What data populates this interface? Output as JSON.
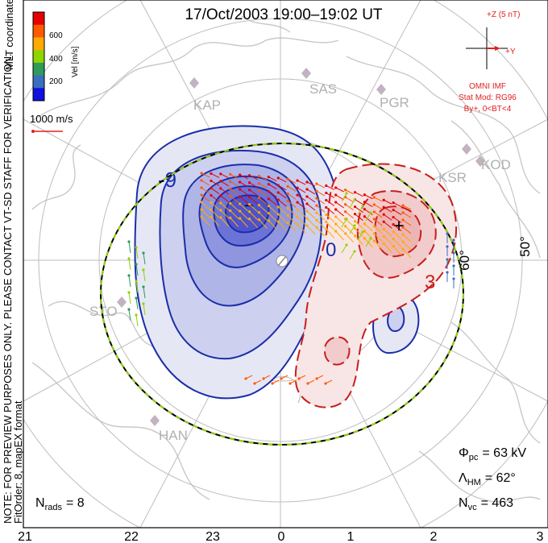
{
  "title": "17/Oct/2003 19:00–19:02 UT",
  "side_notes": {
    "mlt_coords": "MLT coordinates",
    "preview_note": "NOTE: FOR PREVIEW PURPOSES ONLY. PLEASE CONTACT VT-SD STAFF FOR VERIFICATION.",
    "fit_order": "FitOrder: 8, mapEX format"
  },
  "colorbar": {
    "label": "Vel [m/s]",
    "ticks": [
      "600",
      "400",
      "200"
    ],
    "colors": [
      "#e60000",
      "#ff5a00",
      "#ffaa00",
      "#8fd400",
      "#2f9a5a",
      "#3a6ec0",
      "#1010e0"
    ]
  },
  "scale_vector": {
    "label": "1000 m/s",
    "color": "#e02020"
  },
  "imf": {
    "z_label": "+Z (5 nT)",
    "y_label": "+Y",
    "source": "OMNI IMF",
    "model": "Stat Mod: RG96",
    "condition": "By+, 0<BT<4",
    "color": "#e02020"
  },
  "stations": [
    {
      "code": "KAP"
    },
    {
      "code": "SAS"
    },
    {
      "code": "PGR"
    },
    {
      "code": "KSR"
    },
    {
      "code": "KOD"
    },
    {
      "code": "STO"
    },
    {
      "code": "HAN"
    }
  ],
  "latitude_labels": [
    "60°",
    "50°"
  ],
  "contour_labels": {
    "neg": "-9",
    "zero": "0",
    "pos": "3",
    "min_mark": "−",
    "max_mark": "+"
  },
  "stats": {
    "phi_pc": {
      "symbol": "Φ",
      "sub": "pc",
      "value": "= 63 kV"
    },
    "lambda_hm": {
      "symbol": "Λ",
      "sub": "HM",
      "value": "= 62°"
    },
    "n_vc": {
      "symbol": "N",
      "sub": "vc",
      "value": "= 463"
    },
    "n_rads": {
      "symbol": "N",
      "sub": "rads",
      "value": "= 8"
    }
  },
  "mlt_axis": [
    "21",
    "22",
    "23",
    "0",
    "1",
    "2",
    "3"
  ],
  "colors": {
    "negative_contour": "#1a2ea8",
    "positive_contour": "#c81e1e",
    "hm_boundary_a": "#8fd400",
    "hm_boundary_b": "#000000",
    "grid": "#bdbdbd",
    "coast": "#c9c9c9"
  }
}
